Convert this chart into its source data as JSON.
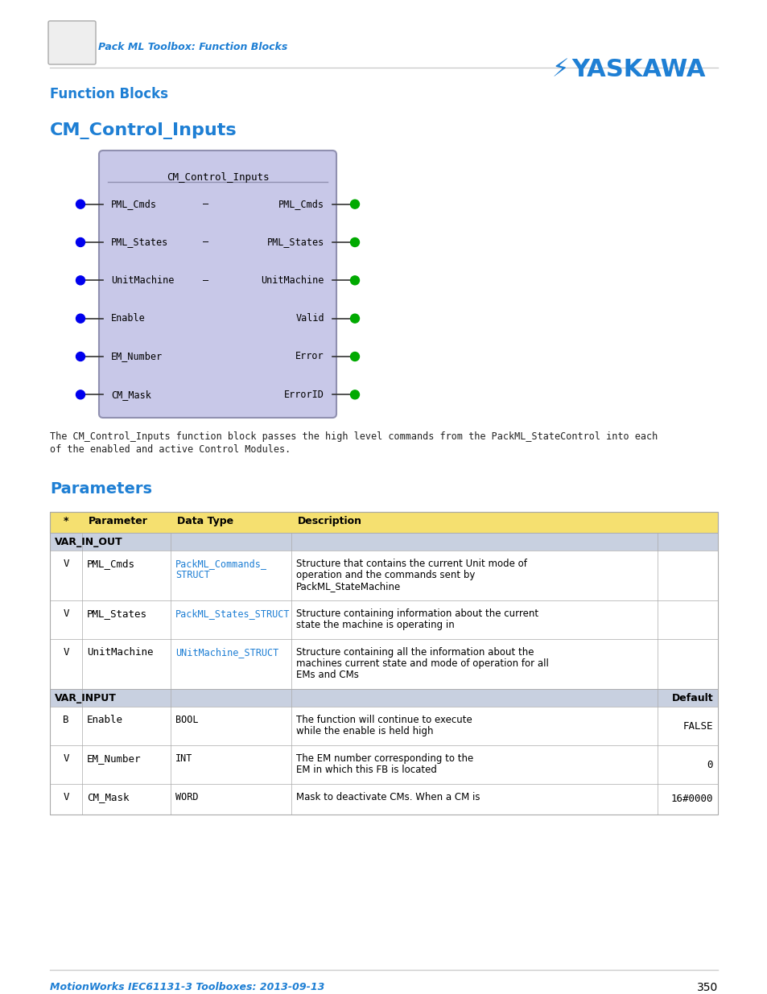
{
  "page_bg": "#ffffff",
  "header_text": "Pack ML Toolbox: Function Blocks",
  "header_color": "#1e7fd4",
  "yaskawa_text": "YASKAWA",
  "yaskawa_color": "#1e7fd4",
  "section1_title": "Function Blocks",
  "section1_color": "#1e7fd4",
  "section2_title": "CM_Control_Inputs",
  "section2_color": "#1e7fd4",
  "fb_title": "CM_Control_Inputs",
  "fb_bg": "#c8c8e8",
  "fb_border": "#8888aa",
  "fb_inputs": [
    "PML_Cmds",
    "PML_States",
    "UnitMachine",
    "Enable",
    "EM_Number",
    "CM_Mask"
  ],
  "fb_outputs": [
    "PML_Cmds",
    "PML_States",
    "UnitMachine",
    "Valid",
    "Error",
    "ErrorID"
  ],
  "fb_dash_rows": [
    0,
    1,
    2
  ],
  "description_text_1": "The CM_Control_Inputs function block passes the high level commands from the PackML_StateControl into each",
  "description_text_2": "of the enabled and active Control Modules.",
  "parameters_title": "Parameters",
  "parameters_color": "#1e7fd4",
  "table_header_bg": "#f5e070",
  "table_group_bg": "#c8d0e0",
  "table_col_headers": [
    "*",
    "Parameter",
    "Data Type",
    "Description"
  ],
  "table_rows": [
    {
      "group": "VAR_IN_OUT",
      "has_default": false
    },
    {
      "star": "V",
      "param": "PML_Cmds",
      "dtype": "PackML_Commands_\nSTRUCT",
      "dtype_link": true,
      "desc": "Structure that contains the current Unit mode of\noperation and the commands sent by\nPackML_StateMachine",
      "default": ""
    },
    {
      "star": "V",
      "param": "PML_States",
      "dtype": "PackML_States_STRUCT",
      "dtype_link": true,
      "desc": "Structure containing information about the current\nstate the machine is operating in",
      "default": ""
    },
    {
      "star": "V",
      "param": "UnitMachine",
      "dtype": "UNitMachine_STRUCT",
      "dtype_link": true,
      "desc": "Structure containing all the information about the\nmachines current state and mode of operation for all\nEMs and CMs",
      "default": ""
    },
    {
      "group": "VAR_INPUT",
      "has_default": true
    },
    {
      "star": "B",
      "param": "Enable",
      "dtype": "BOOL",
      "dtype_link": false,
      "desc": "The function will continue to execute\nwhile the enable is held high",
      "default": "FALSE"
    },
    {
      "star": "V",
      "param": "EM_Number",
      "dtype": "INT",
      "dtype_link": false,
      "desc": "The EM number corresponding to the\nEM in which this FB is located",
      "default": "0"
    },
    {
      "star": "V",
      "param": "CM_Mask",
      "dtype": "WORD",
      "dtype_link": false,
      "desc": "Mask to deactivate CMs. When a CM is",
      "default": "16#0000"
    }
  ],
  "footer_text": "MotionWorks IEC61131-3 Toolboxes: 2013-09-13",
  "footer_color": "#1e7fd4",
  "page_number": "350"
}
